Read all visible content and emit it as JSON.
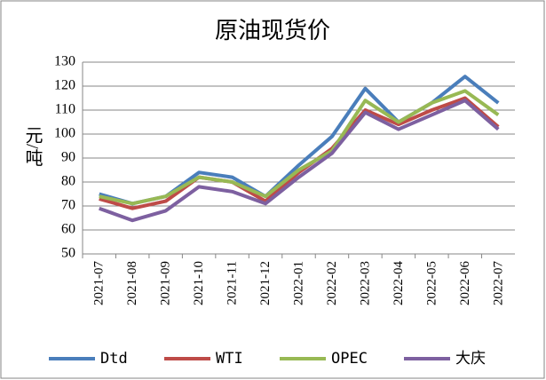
{
  "chart_data": {
    "type": "line",
    "title": "原油现货价",
    "y_label": "元/吨",
    "categories": [
      "2021-07",
      "2021-08",
      "2021-09",
      "2021-10",
      "2021-11",
      "2021-12",
      "2022-01",
      "2022-02",
      "2022-03",
      "2022-04",
      "2022-05",
      "2022-06",
      "2022-07"
    ],
    "series": [
      {
        "name": "Dtd",
        "color": "#4a7ebb",
        "values": [
          75,
          71,
          74,
          84,
          82,
          74,
          87,
          99,
          119,
          105,
          113,
          124,
          113
        ]
      },
      {
        "name": "WTI",
        "color": "#be4b48",
        "values": [
          73,
          69,
          72,
          82,
          80,
          72,
          84,
          94,
          110,
          104,
          110,
          115,
          103
        ]
      },
      {
        "name": "OPEC",
        "color": "#98b954",
        "values": [
          74,
          71,
          74,
          82,
          80,
          74,
          85,
          93,
          114,
          105,
          113,
          118,
          108
        ]
      },
      {
        "name": "大庆",
        "color": "#7d60a0",
        "values": [
          69,
          64,
          68,
          78,
          76,
          71,
          82,
          92,
          109,
          102,
          108,
          114,
          102
        ]
      }
    ],
    "ylim": [
      50,
      130
    ],
    "yticks": [
      50,
      60,
      70,
      80,
      90,
      100,
      110,
      120,
      130
    ],
    "grid": true,
    "legend": "bottom"
  }
}
